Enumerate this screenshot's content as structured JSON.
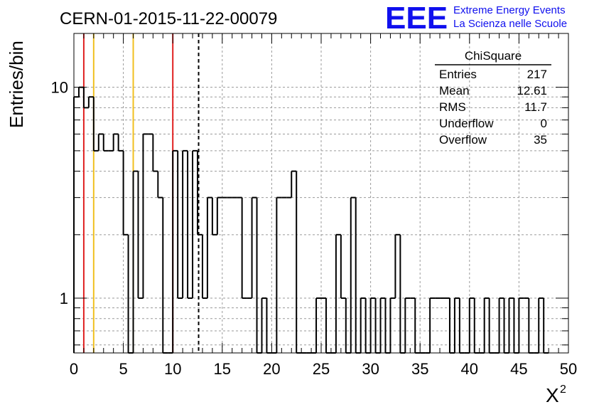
{
  "header": {
    "title": "CERN-01-2015-11-22-00079",
    "logo_text": "EEE",
    "logo_line1": "Extreme Energy Events",
    "logo_line2": "La Scienza nelle Scuole",
    "logo_color": "#1010ee"
  },
  "stats_box": {
    "title": "ChiSquare",
    "rows": [
      {
        "label": "Entries",
        "value": "217"
      },
      {
        "label": "Mean",
        "value": "12.61"
      },
      {
        "label": "RMS",
        "value": "11.7"
      },
      {
        "label": "Underflow",
        "value": "0"
      },
      {
        "label": "Overflow",
        "value": "35"
      }
    ]
  },
  "chart_data": {
    "type": "bar",
    "histogram": true,
    "xlabel": "X",
    "xlabel_superscript": "2",
    "ylabel": "Entries/bin",
    "xlim": [
      0,
      50
    ],
    "ylim": [
      0.55,
      18
    ],
    "yscale": "log",
    "grid": true,
    "x_ticks": [
      0,
      5,
      10,
      15,
      20,
      25,
      30,
      35,
      40,
      45,
      50
    ],
    "y_tick_labels": [
      {
        "value": 1,
        "label": "1"
      },
      {
        "value": 10,
        "label": "10"
      }
    ],
    "bin_width": 0.5,
    "bins": [
      [
        0,
        9
      ],
      [
        0.5,
        10
      ],
      [
        1,
        8
      ],
      [
        1.5,
        9
      ],
      [
        2,
        5
      ],
      [
        2.5,
        6
      ],
      [
        3,
        5
      ],
      [
        3.5,
        5
      ],
      [
        4,
        6
      ],
      [
        4.5,
        5
      ],
      [
        5,
        2
      ],
      [
        5.5,
        0
      ],
      [
        6,
        4
      ],
      [
        6.5,
        1
      ],
      [
        7,
        6
      ],
      [
        7.5,
        6
      ],
      [
        8,
        4
      ],
      [
        8.5,
        3
      ],
      [
        9,
        0
      ],
      [
        9.5,
        0
      ],
      [
        10,
        5
      ],
      [
        10.5,
        1
      ],
      [
        11,
        5
      ],
      [
        11.5,
        1
      ],
      [
        12,
        5
      ],
      [
        12.5,
        2
      ],
      [
        13,
        1
      ],
      [
        13.5,
        3
      ],
      [
        14,
        2
      ],
      [
        14.5,
        3
      ],
      [
        15,
        3
      ],
      [
        15.5,
        3
      ],
      [
        16,
        3
      ],
      [
        16.5,
        3
      ],
      [
        17,
        1
      ],
      [
        17.5,
        1
      ],
      [
        18,
        3
      ],
      [
        18.5,
        0
      ],
      [
        19,
        1
      ],
      [
        19.5,
        0
      ],
      [
        20,
        0
      ],
      [
        20.5,
        3
      ],
      [
        21,
        3
      ],
      [
        21.5,
        3
      ],
      [
        22,
        4
      ],
      [
        22.5,
        0
      ],
      [
        23,
        0
      ],
      [
        23.5,
        0
      ],
      [
        24,
        0
      ],
      [
        24.5,
        1
      ],
      [
        25,
        1
      ],
      [
        25.5,
        0
      ],
      [
        26,
        0
      ],
      [
        26.5,
        2
      ],
      [
        27,
        1
      ],
      [
        27.5,
        0
      ],
      [
        28,
        3
      ],
      [
        28.5,
        0
      ],
      [
        29,
        1
      ],
      [
        29.5,
        0
      ],
      [
        30,
        1
      ],
      [
        30.5,
        0
      ],
      [
        31,
        1
      ],
      [
        31.5,
        0
      ],
      [
        32,
        1
      ],
      [
        32.5,
        2
      ],
      [
        33,
        0
      ],
      [
        33.5,
        1
      ],
      [
        34,
        1
      ],
      [
        34.5,
        0
      ],
      [
        35,
        0
      ],
      [
        35.5,
        0
      ],
      [
        36,
        1
      ],
      [
        36.5,
        1
      ],
      [
        37,
        1
      ],
      [
        37.5,
        1
      ],
      [
        38,
        0
      ],
      [
        38.5,
        1
      ],
      [
        39,
        0
      ],
      [
        39.5,
        0
      ],
      [
        40,
        1
      ],
      [
        40.5,
        0
      ],
      [
        41,
        0
      ],
      [
        41.5,
        1
      ],
      [
        42,
        0
      ],
      [
        42.5,
        0
      ],
      [
        43,
        1
      ],
      [
        43.5,
        0
      ],
      [
        44,
        1
      ],
      [
        44.5,
        0
      ],
      [
        45,
        1
      ],
      [
        45.5,
        1
      ],
      [
        46,
        0
      ],
      [
        46.5,
        0
      ],
      [
        47,
        1
      ],
      [
        47.5,
        0
      ]
    ],
    "vertical_lines": [
      {
        "x": 1.0,
        "color": "#e02020",
        "style": "solid"
      },
      {
        "x": 2.0,
        "color": "#f0c020",
        "style": "solid"
      },
      {
        "x": 6.0,
        "color": "#f0c020",
        "style": "solid"
      },
      {
        "x": 10.0,
        "color": "#e02020",
        "style": "solid"
      },
      {
        "x": 12.61,
        "color": "#000000",
        "style": "dashed"
      }
    ]
  }
}
